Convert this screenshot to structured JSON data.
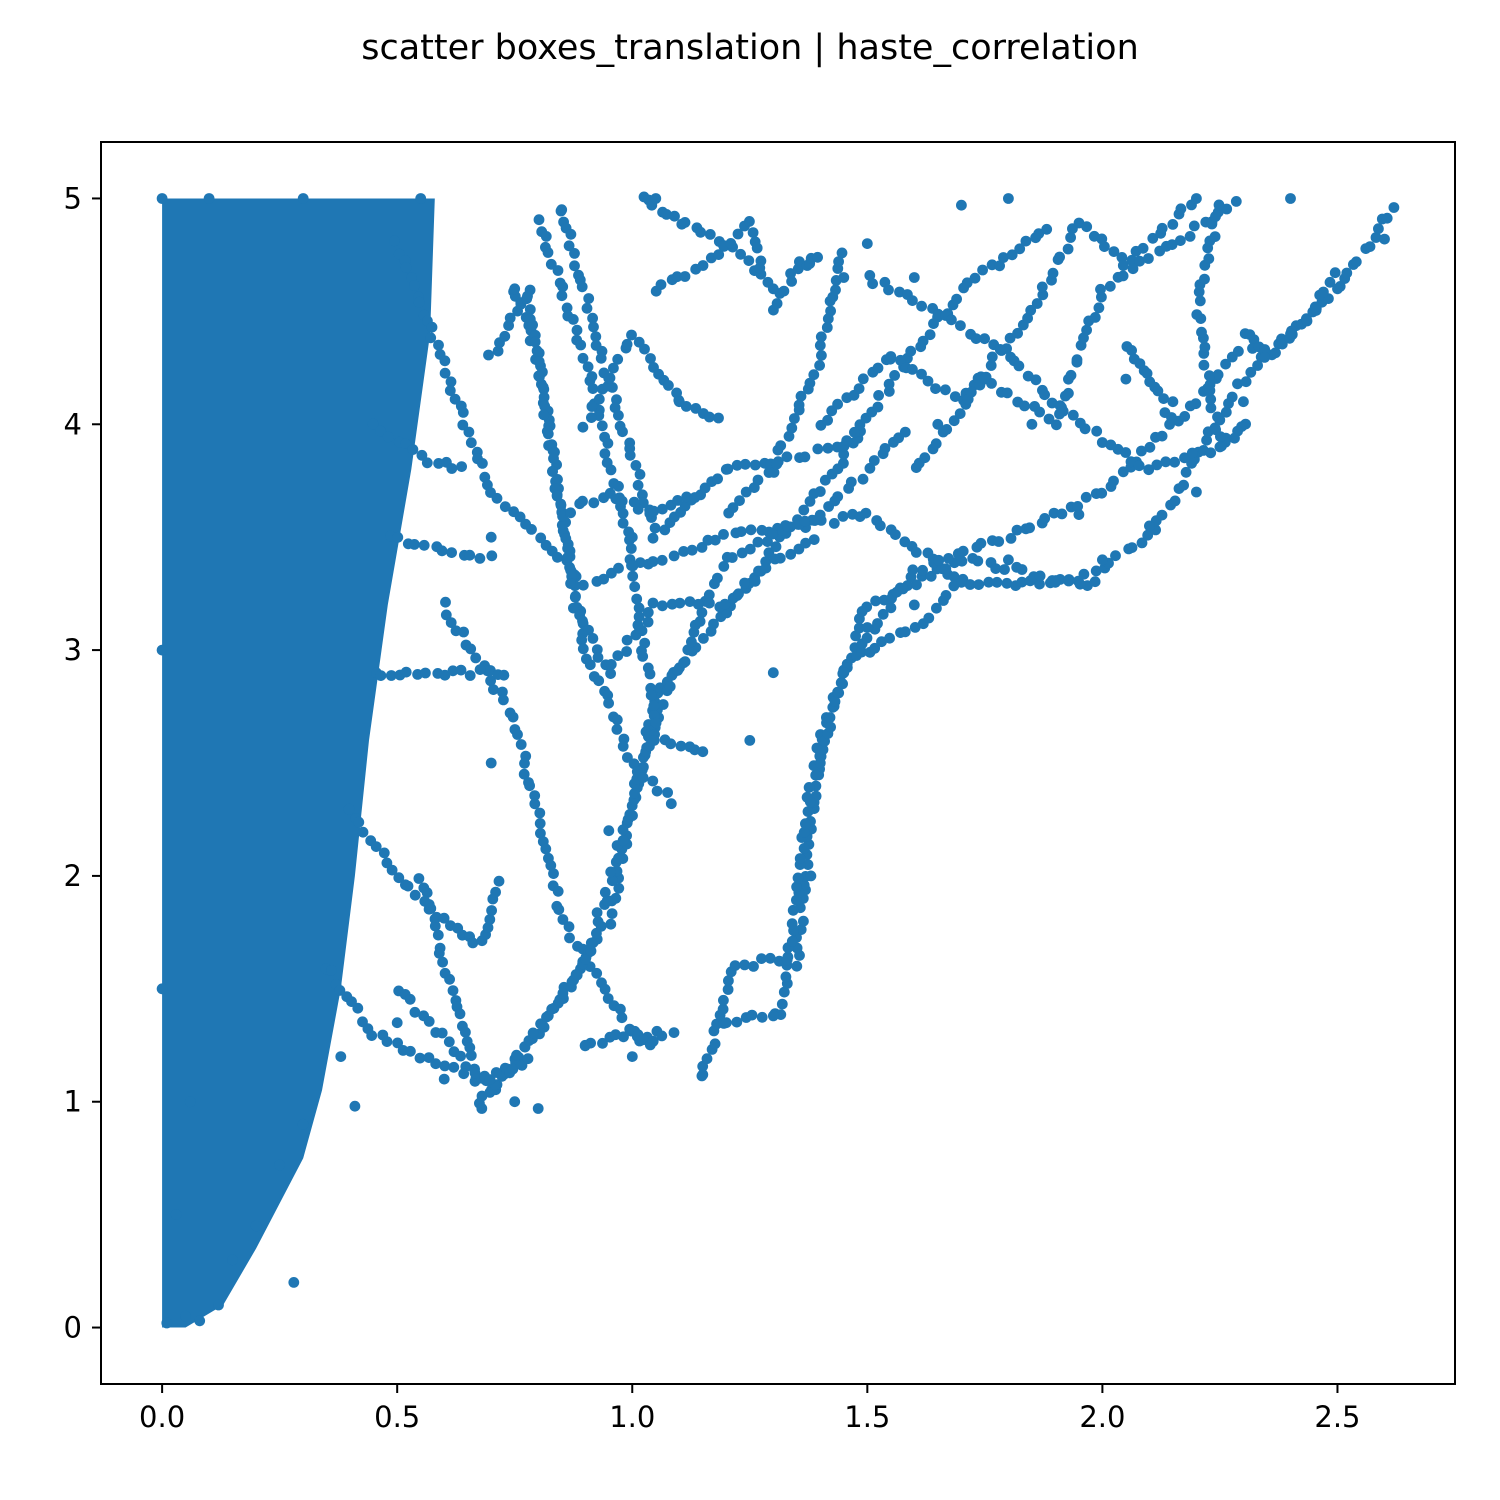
{
  "chart_data": {
    "type": "scatter",
    "title": "scatter boxes_translation | haste_correlation",
    "xlabel": "",
    "ylabel": "",
    "xlim": [
      -0.13,
      2.75
    ],
    "ylim": [
      -0.25,
      5.25
    ],
    "xticks": [
      0.0,
      0.5,
      1.0,
      1.5,
      2.0,
      2.5
    ],
    "xtick_labels": [
      "0.0",
      "0.5",
      "1.0",
      "1.5",
      "2.0",
      "2.5"
    ],
    "yticks": [
      0,
      1,
      2,
      3,
      4,
      5
    ],
    "ytick_labels": [
      "0",
      "1",
      "2",
      "3",
      "4",
      "5"
    ],
    "marker_color": "#1f77b4",
    "grid": false,
    "points": [
      {
        "x": 0.01,
        "y": 0.02
      },
      {
        "x": 0.05,
        "y": 0.05
      },
      {
        "x": 0.08,
        "y": 0.03
      },
      {
        "x": 0.12,
        "y": 0.1
      },
      {
        "x": 0.03,
        "y": 0.5
      },
      {
        "x": 0.06,
        "y": 1.0
      },
      {
        "x": 0.15,
        "y": 0.3
      },
      {
        "x": 0.2,
        "y": 0.45
      },
      {
        "x": 0.28,
        "y": 0.2
      },
      {
        "x": 0.25,
        "y": 0.72
      },
      {
        "x": 0.3,
        "y": 0.9
      },
      {
        "x": 0.38,
        "y": 1.2
      },
      {
        "x": 0.41,
        "y": 0.98
      },
      {
        "x": 0.5,
        "y": 1.35
      },
      {
        "x": 0.6,
        "y": 1.1
      },
      {
        "x": 0.68,
        "y": 0.97
      },
      {
        "x": 0.75,
        "y": 1.0
      },
      {
        "x": 0.8,
        "y": 0.97
      },
      {
        "x": 0.9,
        "y": 1.25
      },
      {
        "x": 1.0,
        "y": 1.2
      },
      {
        "x": 1.15,
        "y": 1.12
      },
      {
        "x": 1.2,
        "y": 1.35
      },
      {
        "x": 1.3,
        "y": 1.38
      },
      {
        "x": 1.35,
        "y": 1.6
      },
      {
        "x": 1.38,
        "y": 2.0
      },
      {
        "x": 1.4,
        "y": 2.5
      },
      {
        "x": 1.45,
        "y": 2.9
      },
      {
        "x": 1.5,
        "y": 3.1
      },
      {
        "x": 1.6,
        "y": 3.2
      },
      {
        "x": 1.7,
        "y": 3.3
      },
      {
        "x": 1.8,
        "y": 3.4
      },
      {
        "x": 1.9,
        "y": 3.3
      },
      {
        "x": 2.0,
        "y": 3.4
      },
      {
        "x": 2.1,
        "y": 3.55
      },
      {
        "x": 2.2,
        "y": 3.7
      },
      {
        "x": 2.3,
        "y": 4.1
      },
      {
        "x": 2.4,
        "y": 4.4
      },
      {
        "x": 2.5,
        "y": 4.6
      },
      {
        "x": 2.6,
        "y": 4.82
      },
      {
        "x": 2.62,
        "y": 4.96
      },
      {
        "x": 2.4,
        "y": 5.0
      },
      {
        "x": 2.2,
        "y": 5.0
      },
      {
        "x": 1.8,
        "y": 5.0
      },
      {
        "x": 1.7,
        "y": 4.97
      },
      {
        "x": 1.5,
        "y": 4.8
      },
      {
        "x": 1.3,
        "y": 4.6
      },
      {
        "x": 1.05,
        "y": 5.0
      },
      {
        "x": 0.85,
        "y": 4.95
      },
      {
        "x": 0.55,
        "y": 5.0
      },
      {
        "x": 0.3,
        "y": 5.0
      },
      {
        "x": 0.1,
        "y": 5.0
      },
      {
        "x": 0.0,
        "y": 5.0
      },
      {
        "x": 0.0,
        "y": 3.0
      },
      {
        "x": 0.0,
        "y": 1.5
      },
      {
        "x": 0.7,
        "y": 2.5
      },
      {
        "x": 0.7,
        "y": 3.5
      },
      {
        "x": 0.75,
        "y": 4.6
      },
      {
        "x": 1.0,
        "y": 3.5
      },
      {
        "x": 1.1,
        "y": 4.1
      },
      {
        "x": 1.2,
        "y": 3.8
      },
      {
        "x": 1.3,
        "y": 2.9
      },
      {
        "x": 1.25,
        "y": 2.6
      },
      {
        "x": 1.15,
        "y": 2.55
      },
      {
        "x": 0.95,
        "y": 2.2
      },
      {
        "x": 1.55,
        "y": 4.3
      },
      {
        "x": 1.65,
        "y": 4.0
      },
      {
        "x": 1.75,
        "y": 4.2
      },
      {
        "x": 1.85,
        "y": 4.0
      },
      {
        "x": 1.95,
        "y": 3.6
      },
      {
        "x": 2.05,
        "y": 4.2
      },
      {
        "x": 2.15,
        "y": 4.1
      },
      {
        "x": 2.25,
        "y": 3.9
      },
      {
        "x": 1.6,
        "y": 4.65
      },
      {
        "x": 1.45,
        "y": 4.65
      }
    ]
  }
}
